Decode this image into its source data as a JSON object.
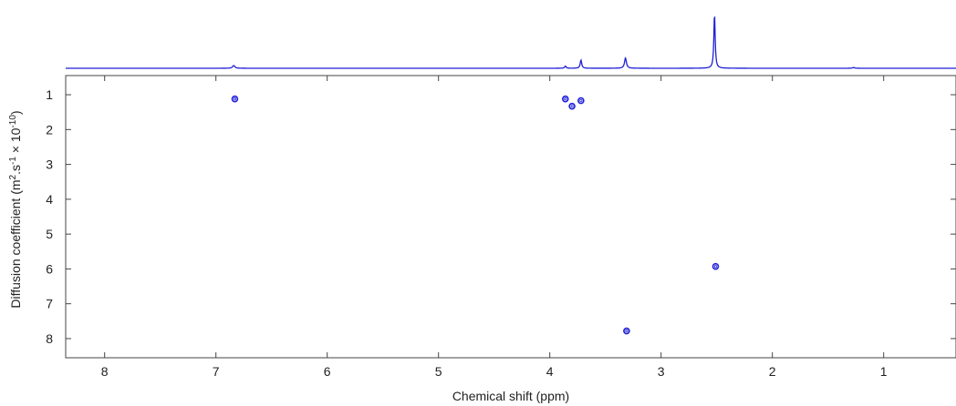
{
  "chart_data": {
    "type": "scatter",
    "title": "",
    "xlabel": "Chemical shift (ppm)",
    "ylabel_main": "Diffusion coefficient (m",
    "ylabel_sup1": "2",
    "ylabel_mid": ".s",
    "ylabel_sup2": "-1",
    "ylabel_end": " × 10",
    "ylabel_sup3": "-10",
    "ylabel_close": ")",
    "xlim": [
      8.35,
      0.35
    ],
    "ylim": [
      0.45,
      8.55
    ],
    "x_reversed": true,
    "y_reversed": true,
    "xticks": [
      8,
      7,
      6,
      5,
      4,
      3,
      2,
      1
    ],
    "yticks": [
      1,
      2,
      3,
      4,
      5,
      6,
      7,
      8
    ],
    "grid": false,
    "contour_color": "#1f1fd6",
    "points": [
      {
        "x": 6.83,
        "y": 1.12
      },
      {
        "x": 3.86,
        "y": 1.12
      },
      {
        "x": 3.8,
        "y": 1.33
      },
      {
        "x": 3.72,
        "y": 1.17
      },
      {
        "x": 2.51,
        "y": 5.93
      },
      {
        "x": 3.31,
        "y": 7.78
      }
    ],
    "spectrum": {
      "baseline": 0.02,
      "peaks": [
        {
          "x": 6.84,
          "height": 0.05,
          "width": 0.012
        },
        {
          "x": 3.86,
          "height": 0.04,
          "width": 0.008
        },
        {
          "x": 3.72,
          "height": 0.15,
          "width": 0.008
        },
        {
          "x": 3.32,
          "height": 0.19,
          "width": 0.01
        },
        {
          "x": 2.52,
          "height": 1.0,
          "width": 0.007
        },
        {
          "x": 1.27,
          "height": 0.015,
          "width": 0.01
        }
      ]
    }
  }
}
